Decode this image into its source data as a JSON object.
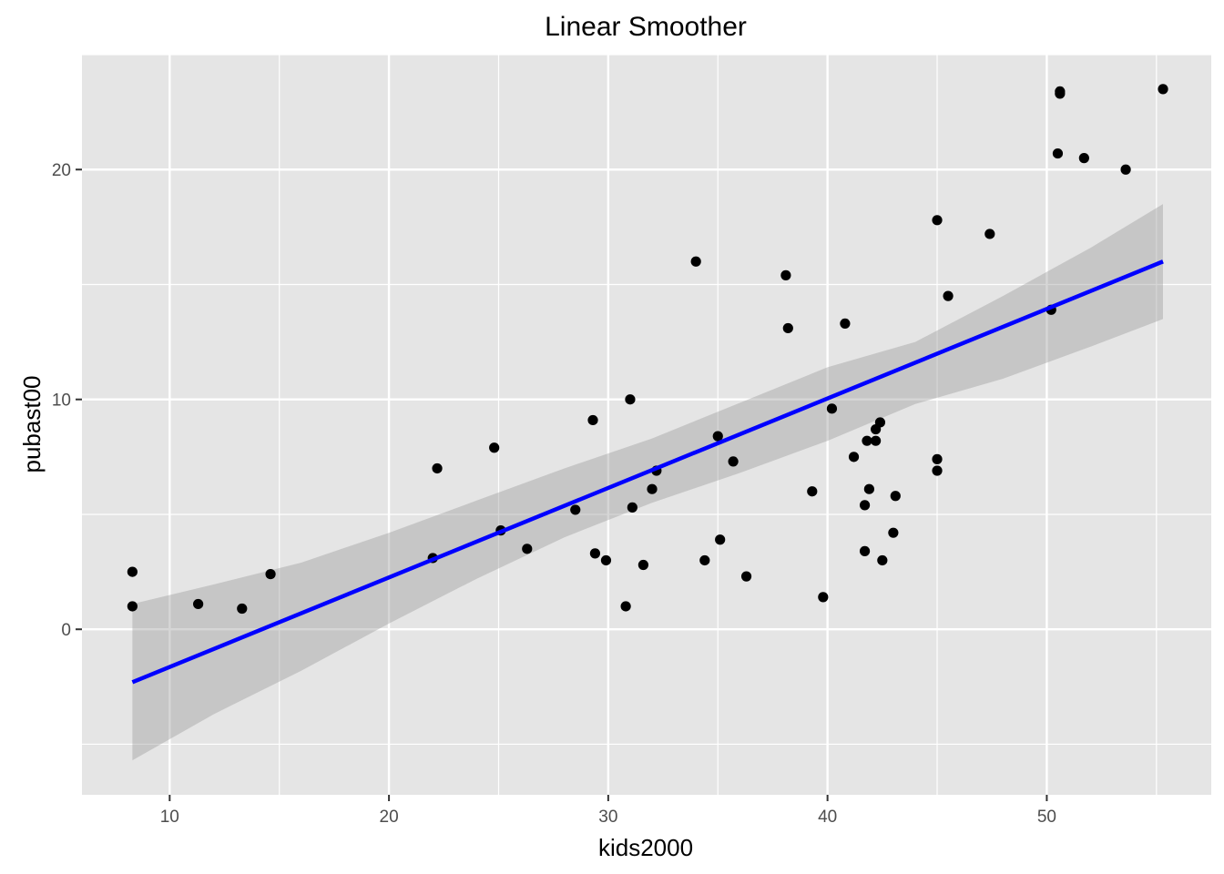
{
  "chart_data": {
    "type": "scatter",
    "title": "Linear Smoother",
    "xlabel": "kids2000",
    "ylabel": "pubast00",
    "xlim": [
      6.0,
      57.5
    ],
    "ylim": [
      -7.2,
      25.0
    ],
    "xticks": [
      10,
      20,
      30,
      40,
      50
    ],
    "xtick_labels": [
      "10",
      "20",
      "30",
      "40",
      "50"
    ],
    "yticks": [
      0,
      10,
      20
    ],
    "ytick_labels": [
      "0",
      "10",
      "20"
    ],
    "grid": true,
    "legend": "none",
    "colors": {
      "panel_background": "#e5e5e5",
      "grid": "#ffffff",
      "points": "#000000",
      "fit_line": "#0000ff",
      "confidence_band": "#999999"
    },
    "points": [
      {
        "x": 8.3,
        "y": 2.5
      },
      {
        "x": 8.3,
        "y": 1.0
      },
      {
        "x": 11.3,
        "y": 1.1
      },
      {
        "x": 13.3,
        "y": 0.9
      },
      {
        "x": 14.6,
        "y": 2.4
      },
      {
        "x": 22.0,
        "y": 3.1
      },
      {
        "x": 22.2,
        "y": 7.0
      },
      {
        "x": 24.8,
        "y": 7.9
      },
      {
        "x": 25.1,
        "y": 4.3
      },
      {
        "x": 26.3,
        "y": 3.5
      },
      {
        "x": 28.5,
        "y": 5.2
      },
      {
        "x": 29.3,
        "y": 9.1
      },
      {
        "x": 29.4,
        "y": 3.3
      },
      {
        "x": 29.9,
        "y": 3.0
      },
      {
        "x": 30.8,
        "y": 1.0
      },
      {
        "x": 31.0,
        "y": 10.0
      },
      {
        "x": 31.1,
        "y": 5.3
      },
      {
        "x": 31.6,
        "y": 2.8
      },
      {
        "x": 32.0,
        "y": 6.1
      },
      {
        "x": 32.2,
        "y": 6.9
      },
      {
        "x": 34.0,
        "y": 16.0
      },
      {
        "x": 34.4,
        "y": 3.0
      },
      {
        "x": 35.0,
        "y": 8.4
      },
      {
        "x": 35.1,
        "y": 3.9
      },
      {
        "x": 35.7,
        "y": 7.3
      },
      {
        "x": 36.3,
        "y": 2.3
      },
      {
        "x": 38.1,
        "y": 15.4
      },
      {
        "x": 38.2,
        "y": 13.1
      },
      {
        "x": 39.3,
        "y": 6.0
      },
      {
        "x": 39.8,
        "y": 1.4
      },
      {
        "x": 40.2,
        "y": 9.6
      },
      {
        "x": 40.8,
        "y": 13.3
      },
      {
        "x": 41.2,
        "y": 7.5
      },
      {
        "x": 41.7,
        "y": 5.4
      },
      {
        "x": 41.7,
        "y": 3.4
      },
      {
        "x": 41.8,
        "y": 8.2
      },
      {
        "x": 41.9,
        "y": 6.1
      },
      {
        "x": 42.2,
        "y": 8.7
      },
      {
        "x": 42.2,
        "y": 8.2
      },
      {
        "x": 42.4,
        "y": 9.0
      },
      {
        "x": 42.5,
        "y": 3.0
      },
      {
        "x": 43.0,
        "y": 4.2
      },
      {
        "x": 43.1,
        "y": 5.8
      },
      {
        "x": 45.0,
        "y": 17.8
      },
      {
        "x": 45.0,
        "y": 7.4
      },
      {
        "x": 45.0,
        "y": 6.9
      },
      {
        "x": 45.5,
        "y": 14.5
      },
      {
        "x": 47.4,
        "y": 17.2
      },
      {
        "x": 50.2,
        "y": 13.9
      },
      {
        "x": 50.5,
        "y": 20.7
      },
      {
        "x": 50.6,
        "y": 23.4
      },
      {
        "x": 50.6,
        "y": 23.3
      },
      {
        "x": 51.7,
        "y": 20.5
      },
      {
        "x": 53.6,
        "y": 20.0
      },
      {
        "x": 55.3,
        "y": 23.5
      }
    ],
    "fit": {
      "method": "linear",
      "x": [
        8.3,
        55.3
      ],
      "y": [
        -2.3,
        16.0
      ],
      "band": {
        "x": [
          8.3,
          12.0,
          16.0,
          20.0,
          24.0,
          28.0,
          32.0,
          36.0,
          40.0,
          44.0,
          48.0,
          52.0,
          55.3
        ],
        "lower": [
          -5.7,
          -3.7,
          -1.8,
          0.25,
          2.2,
          4.0,
          5.5,
          6.8,
          8.2,
          9.8,
          10.9,
          12.3,
          13.5
        ],
        "upper": [
          1.1,
          1.95,
          2.9,
          4.2,
          5.6,
          7.0,
          8.3,
          9.85,
          11.4,
          12.5,
          14.5,
          16.6,
          18.5
        ]
      }
    }
  }
}
